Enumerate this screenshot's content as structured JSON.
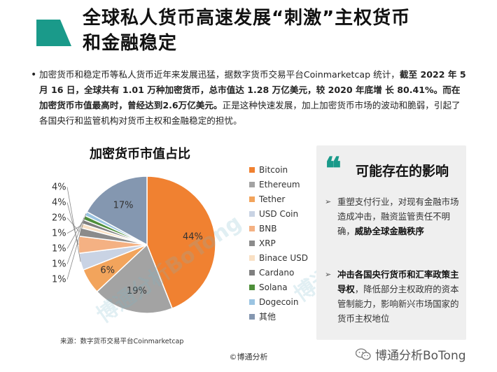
{
  "colors": {
    "accent_teal": "#1a9a8a",
    "accent_arrow": "#2a9d8f",
    "slice_colors": [
      "#f08131",
      "#a3a3a3",
      "#f2a45c",
      "#c9d3e4",
      "#f4b183",
      "#8b8b8b",
      "#f9e0c4",
      "#7f7f7f",
      "#4e8f3a",
      "#9bc4e2",
      "#8497b0"
    ]
  },
  "header": {
    "title_line1": "全球私人货币高速发展“刺激”主权货币",
    "title_line2": "和金融稳定"
  },
  "body": {
    "seg1": "加密货币和稳定币等私人货币近年来发展迅猛，据数字货币交易平台Coinmarketcap 统计，",
    "seg2_bold": "截至 2022 年 5 月 16 日，全球共有 1.01 万种加密货币，总市值达 1.28 万亿美元，较 2020 年底增 长 80.41%。而在加密货币市值最高时，曾经达到2.6万亿美元。",
    "seg3": "正是这种快速发展，加上加密货币市场的波动和脆弱，引起了各国央行和监管机构对货币主权和金融稳定的担忧。"
  },
  "chart_data": {
    "type": "pie",
    "title": "加密货币市值占比",
    "categories": [
      "Bitcoin",
      "Ethereum",
      "Tether",
      "USD Coin",
      "BNB",
      "XRP",
      "Binace USD",
      "Cardano",
      "Solana",
      "Dogecoin",
      "其他"
    ],
    "values": [
      44,
      19,
      6,
      4,
      4,
      2,
      1,
      1,
      1,
      1,
      17
    ],
    "data_labels": [
      "44%",
      "19%",
      "6%",
      "4%",
      "4%",
      "2%",
      "1%",
      "1%",
      "1%",
      "1%",
      "17%"
    ],
    "legend_position": "right"
  },
  "impact": {
    "quote_mark": "❝",
    "title": "可能存在的影响",
    "item1_plain": "重塑支付行业，对现有金融市场造成冲击，融资监管责任不明确，",
    "item1_bold": "威胁全球金融秩序",
    "item2_bold": "冲击各国央行货币和汇率政策主导权",
    "item2_plain": "，降低部分主权政府的资本管制能力，影响新兴市场国家的货币主权地位"
  },
  "footer": {
    "source": "来源：数字货币交易平台Coinmarketcap",
    "copyright": "©博通分析",
    "brand": "博通分析BoTong"
  },
  "watermark": {
    "text": "博通分析BoTong"
  }
}
